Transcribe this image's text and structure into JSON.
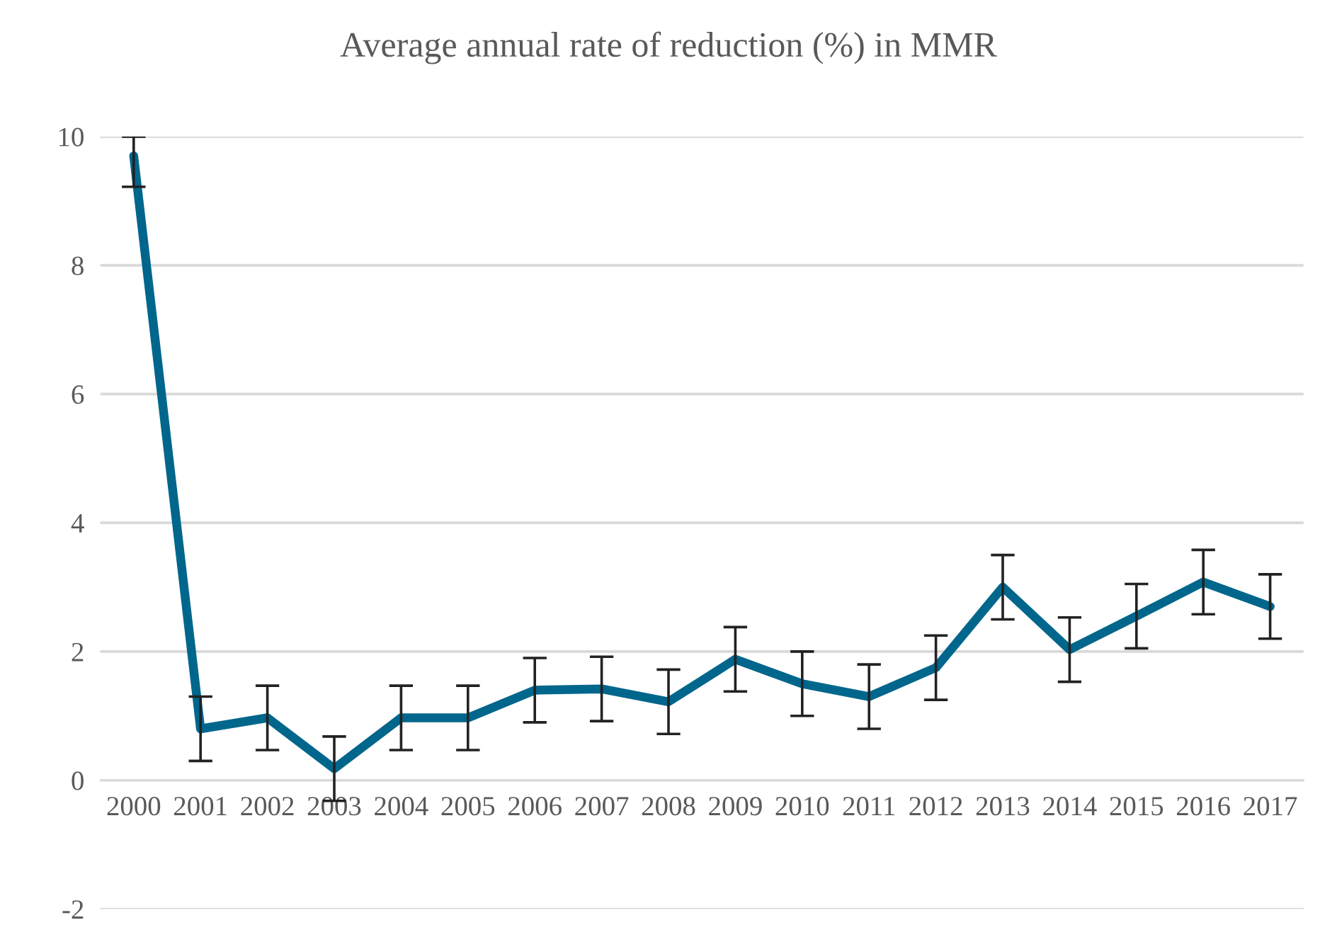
{
  "chart_data": {
    "type": "line",
    "title": "Average annual rate of reduction (%) in MMR",
    "categories": [
      "2000",
      "2001",
      "2002",
      "2003",
      "2004",
      "2005",
      "2006",
      "2007",
      "2008",
      "2009",
      "2010",
      "2011",
      "2012",
      "2013",
      "2014",
      "2015",
      "2016",
      "2017"
    ],
    "series": [
      {
        "color": "#00668c",
        "values": [
          9.7,
          0.8,
          0.97,
          0.18,
          0.97,
          0.97,
          1.4,
          1.42,
          1.22,
          1.88,
          1.5,
          1.3,
          1.75,
          3.0,
          2.03,
          2.55,
          3.08,
          2.7
        ],
        "errors": [
          [
            9.22,
            10
          ],
          0.5,
          0.5,
          0.5,
          0.5,
          0.5,
          0.5,
          0.5,
          0.5,
          0.5,
          0.5,
          0.5,
          0.5,
          0.5,
          0.5,
          0.5,
          0.5,
          0.5
        ]
      }
    ],
    "ylim": [
      -2,
      10
    ],
    "yticks": [
      -2,
      0,
      2,
      4,
      6,
      8,
      10
    ],
    "grid": "y",
    "marker": "none",
    "line_style": "solid"
  }
}
